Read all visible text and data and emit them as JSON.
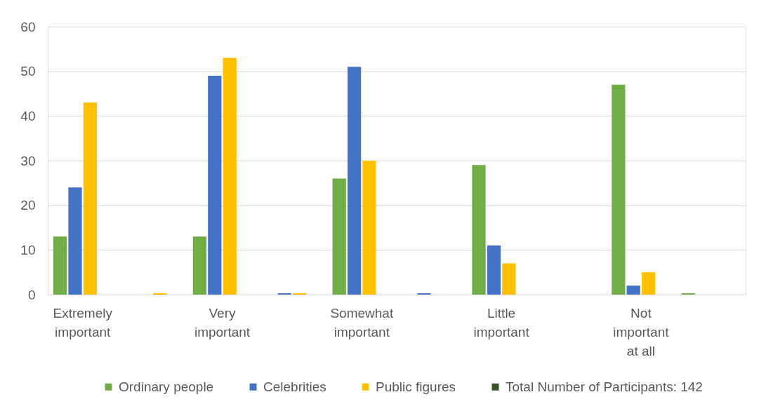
{
  "chart_data": {
    "type": "bar",
    "categories": [
      "Extremely important",
      null,
      "Very important",
      null,
      "Somewhat important",
      null,
      "Little important",
      null,
      "Not important at all",
      null
    ],
    "series": [
      {
        "name": "Ordinary people",
        "color": "#70ad47",
        "values": [
          13,
          null,
          13,
          null,
          26,
          null,
          29,
          null,
          47,
          0.3
        ]
      },
      {
        "name": "Celebrities",
        "color": "#4472c4",
        "values": [
          24,
          null,
          49,
          0.3,
          51,
          0.3,
          11,
          null,
          2,
          null
        ]
      },
      {
        "name": "Public figures",
        "color": "#ffc000",
        "values": [
          43,
          0.3,
          53,
          0.3,
          30,
          null,
          7,
          null,
          5,
          null
        ]
      },
      {
        "name": "Total Number of Participants: 142",
        "color": "#375623",
        "values": [
          null,
          null,
          null,
          null,
          null,
          null,
          null,
          null,
          null,
          null
        ]
      }
    ],
    "ylim": [
      0,
      60
    ],
    "yticks": [
      0,
      10,
      20,
      30,
      40,
      50,
      60
    ],
    "grid": "y",
    "legend": "bottom"
  }
}
